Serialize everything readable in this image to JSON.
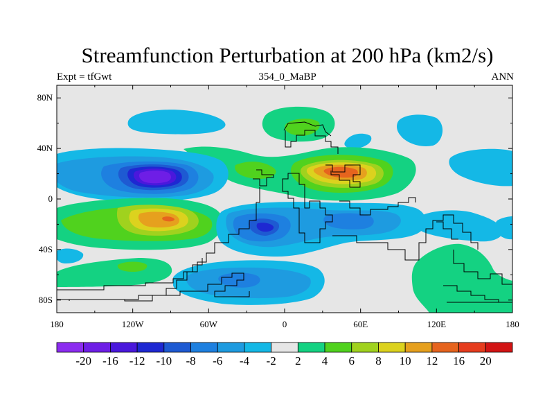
{
  "title": "Streamfunction Perturbation at 200 hPa (km2/s)",
  "subtitle_left": "Expt = tfGwt",
  "subtitle_center": "354_0_MaBP",
  "subtitle_right": "ANN",
  "colors": {
    "background_field": "#e6e6e6",
    "coast": "#000000"
  },
  "chart_data": {
    "type": "filled-contour-map",
    "title": "Streamfunction Perturbation at 200 hPa (km2/s)",
    "variable": "Streamfunction perturbation",
    "level": "200 hPa",
    "units": "km2/s",
    "period": "ANN",
    "experiment": "tfGwt",
    "case": "354_0_MaBP",
    "lon_range": [
      -180,
      180
    ],
    "lat_range": [
      -90,
      90
    ],
    "x_ticks": [
      "180",
      "120W",
      "60W",
      "0",
      "60E",
      "120E",
      "180"
    ],
    "x_tick_values": [
      -180,
      -120,
      -60,
      0,
      60,
      120,
      180
    ],
    "y_ticks": [
      "80N",
      "40N",
      "0",
      "40S",
      "80S"
    ],
    "y_tick_values": [
      80,
      40,
      0,
      -40,
      -80
    ],
    "contour_levels": [
      "-20",
      "-16",
      "-12",
      "-10",
      "-8",
      "-6",
      "-4",
      "-2",
      "2",
      "4",
      "6",
      "8",
      "10",
      "12",
      "16",
      "20"
    ],
    "colorbar_colors": [
      "#8c2cf0",
      "#6e1ee6",
      "#4a18dc",
      "#1e28d2",
      "#1e5ad2",
      "#1e80e0",
      "#1e9be0",
      "#14b8e6",
      "#e6e6e6",
      "#14d282",
      "#50d21e",
      "#a0d21e",
      "#dcd21e",
      "#e6a01e",
      "#e6641e",
      "#e63c1e",
      "#d21414"
    ],
    "features": [
      {
        "sign": "negative",
        "center_lon": -88,
        "center_lat": 16,
        "peak": -20
      },
      {
        "sign": "positive",
        "center_lon": 50,
        "center_lat": 20,
        "peak": 16
      },
      {
        "sign": "positive",
        "center_lon": -90,
        "center_lat": -16,
        "peak": 12
      },
      {
        "sign": "negative",
        "center_lon": -15,
        "center_lat": -22,
        "peak": -10
      },
      {
        "sign": "negative",
        "center_lon": -30,
        "center_lat": -62,
        "peak": -6
      },
      {
        "sign": "positive",
        "center_lon": 20,
        "center_lat": 58,
        "peak": 6
      },
      {
        "sign": "positive",
        "center_lon": 148,
        "center_lat": -65,
        "peak": 4
      },
      {
        "sign": "negative",
        "center_lon": 92,
        "center_lat": 52,
        "peak": -4
      }
    ]
  }
}
